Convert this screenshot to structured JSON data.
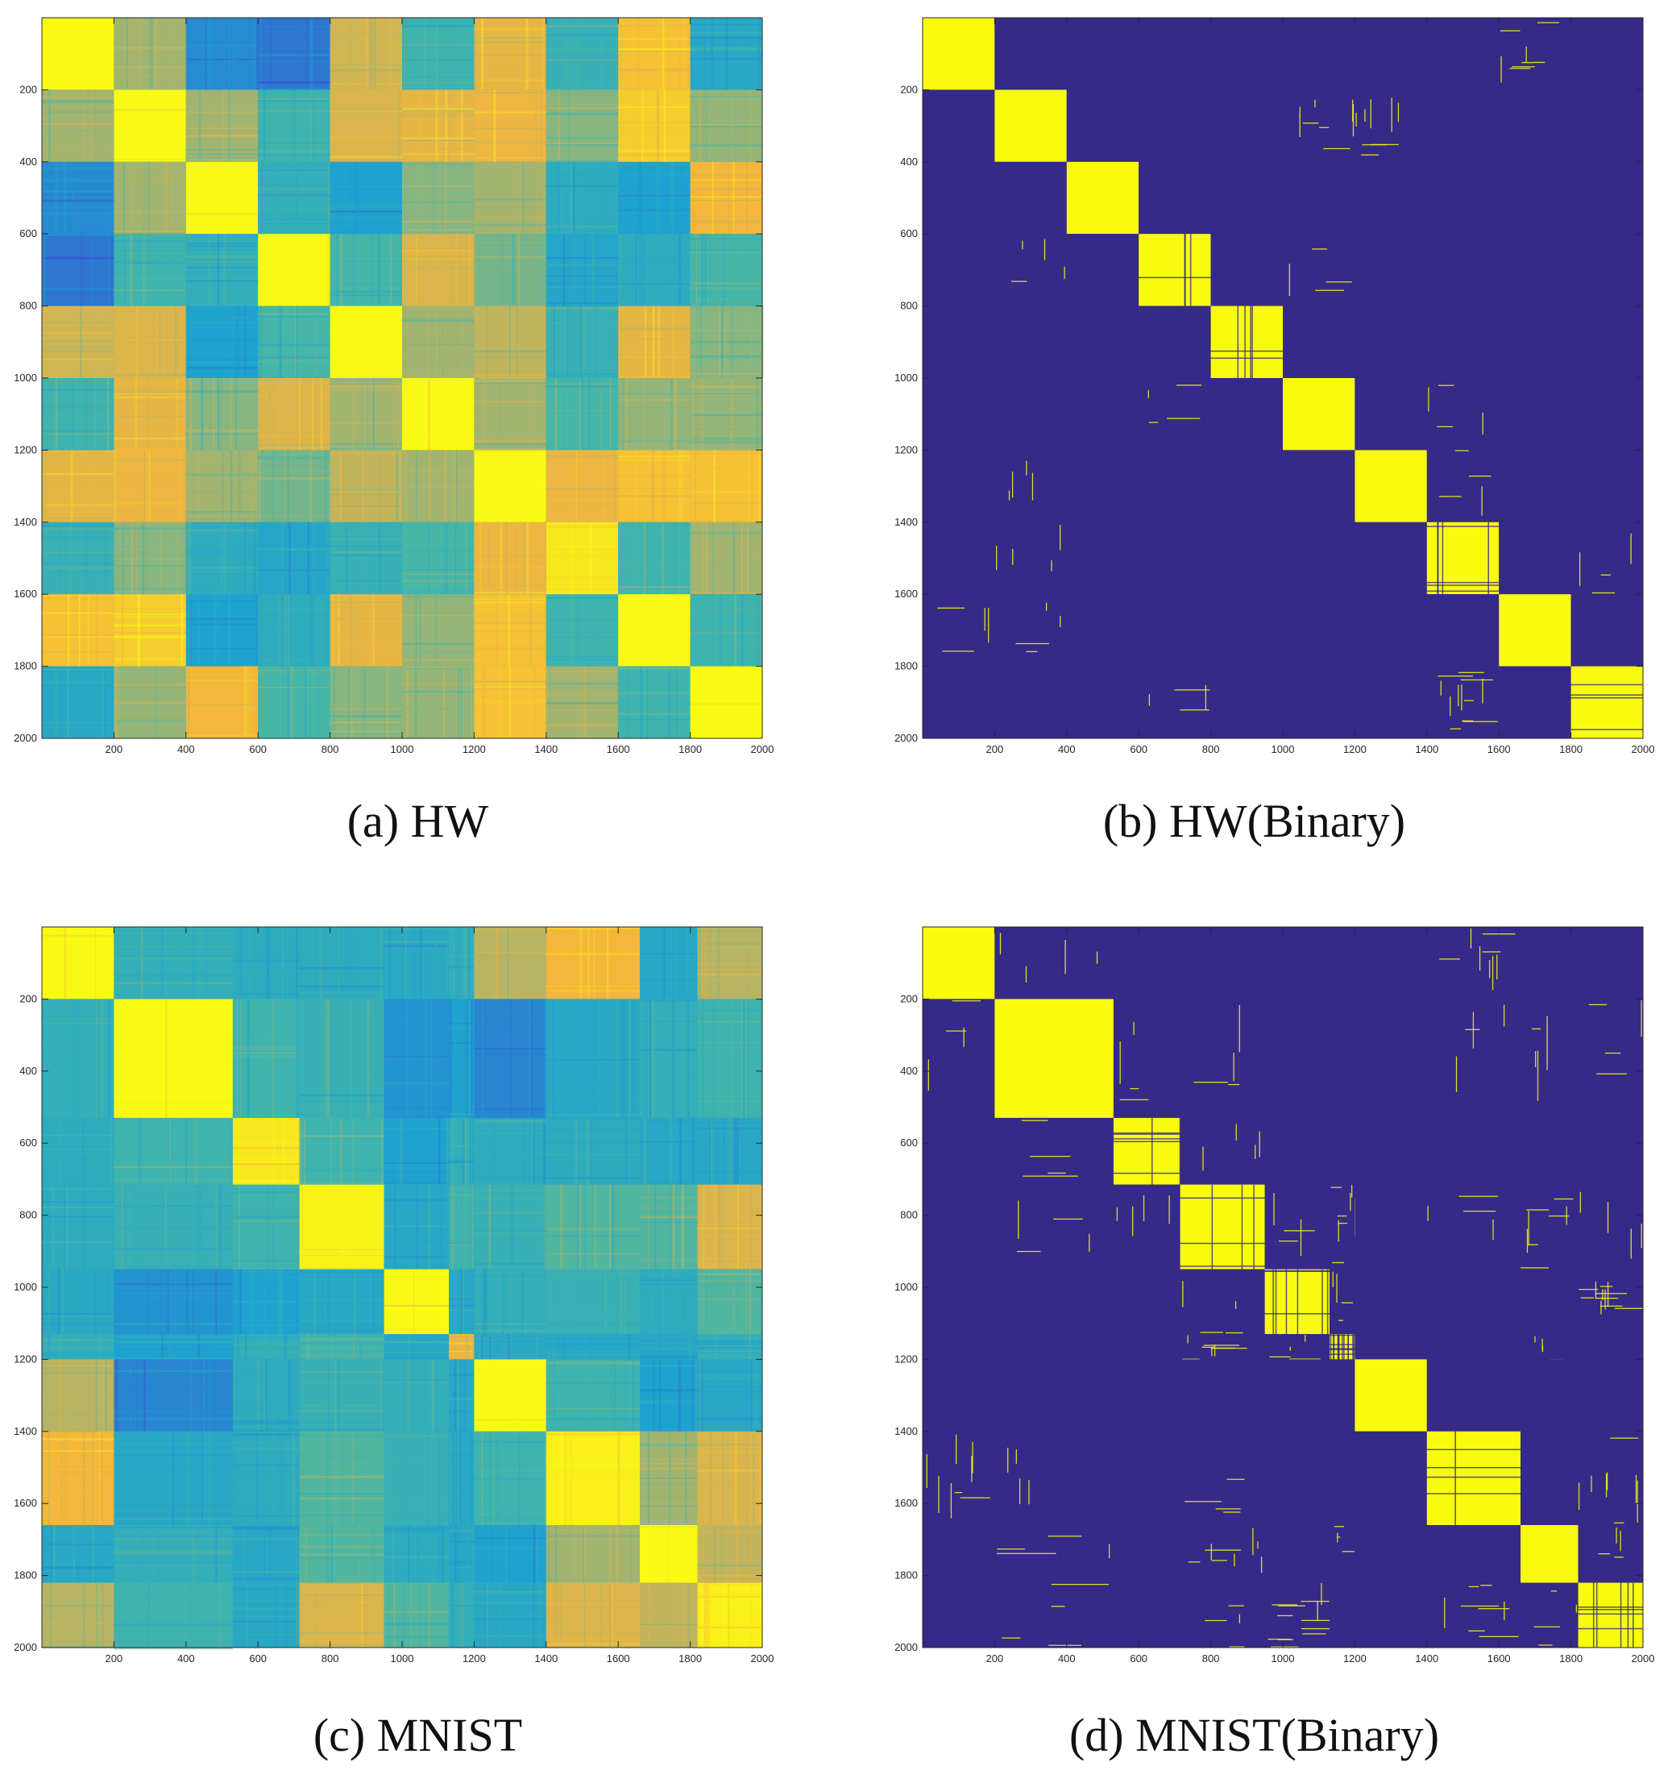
{
  "colors": {
    "parula_low": "#3d49d0",
    "parula_mid": "#1ea3d0",
    "parula_teal": "#45b6a7",
    "parula_olive": "#b7b464",
    "parula_orange": "#f4b63b",
    "parula_high": "#f9fa14",
    "binary_off": "#352a87",
    "binary_on": "#f9fb0e",
    "axis": "#262626"
  },
  "chart_data": [
    {
      "id": "a",
      "type": "heatmap",
      "caption_label": "(a)",
      "caption_name": "HW",
      "colormap": "parula",
      "n": 2000,
      "xlim": [
        0,
        2000
      ],
      "ylim": [
        0,
        2000
      ],
      "x_ticks": [
        "200",
        "400",
        "600",
        "800",
        "1000",
        "1200",
        "1400",
        "1600",
        "1800",
        "2000"
      ],
      "y_ticks": [
        "200",
        "400",
        "600",
        "800",
        "1000",
        "1200",
        "1400",
        "1600",
        "1800",
        "2000"
      ],
      "cluster_bounds": [
        0,
        200,
        400,
        600,
        800,
        1000,
        1200,
        1400,
        1600,
        1800,
        2000
      ],
      "block_values": [
        [
          1.0,
          0.62,
          0.22,
          0.15,
          0.72,
          0.45,
          0.78,
          0.42,
          0.85,
          0.35
        ],
        [
          0.62,
          1.0,
          0.62,
          0.45,
          0.75,
          0.78,
          0.8,
          0.58,
          0.88,
          0.6
        ],
        [
          0.22,
          0.62,
          1.0,
          0.4,
          0.3,
          0.58,
          0.62,
          0.38,
          0.3,
          0.82
        ],
        [
          0.15,
          0.45,
          0.4,
          1.0,
          0.48,
          0.75,
          0.55,
          0.33,
          0.38,
          0.48
        ],
        [
          0.72,
          0.75,
          0.3,
          0.48,
          1.0,
          0.62,
          0.68,
          0.42,
          0.78,
          0.58
        ],
        [
          0.45,
          0.78,
          0.58,
          0.75,
          0.62,
          1.0,
          0.62,
          0.48,
          0.6,
          0.6
        ],
        [
          0.78,
          0.8,
          0.62,
          0.55,
          0.68,
          0.62,
          1.0,
          0.8,
          0.85,
          0.85
        ],
        [
          0.42,
          0.58,
          0.38,
          0.33,
          0.42,
          0.48,
          0.8,
          0.95,
          0.45,
          0.62
        ],
        [
          0.85,
          0.88,
          0.3,
          0.38,
          0.78,
          0.6,
          0.85,
          0.45,
          1.0,
          0.45
        ],
        [
          0.35,
          0.6,
          0.82,
          0.48,
          0.58,
          0.6,
          0.85,
          0.62,
          0.45,
          1.0
        ]
      ]
    },
    {
      "id": "b",
      "type": "heatmap",
      "caption_label": "(b)",
      "caption_name": "HW(Binary)",
      "colormap": "binary",
      "n": 2000,
      "xlim": [
        0,
        2000
      ],
      "ylim": [
        0,
        2000
      ],
      "x_ticks": [
        "200",
        "400",
        "600",
        "800",
        "1000",
        "1200",
        "1400",
        "1600",
        "1800",
        "2000"
      ],
      "y_ticks": [
        "200",
        "400",
        "600",
        "800",
        "1000",
        "1200",
        "1400",
        "1600",
        "1800",
        "2000"
      ],
      "cluster_bounds": [
        0,
        200,
        400,
        600,
        800,
        1000,
        1200,
        1400,
        1600,
        1800,
        2000
      ],
      "block_values": [
        [
          1,
          0,
          0,
          0,
          0,
          0,
          0,
          0,
          0.02,
          0
        ],
        [
          0,
          0.97,
          0,
          0,
          0,
          0.02,
          0.02,
          0,
          0,
          0
        ],
        [
          0,
          0,
          1,
          0,
          0,
          0,
          0,
          0,
          0,
          0
        ],
        [
          0,
          0.01,
          0,
          0.93,
          0,
          0.01,
          0,
          0,
          0,
          0
        ],
        [
          0,
          0,
          0,
          0,
          0.9,
          0,
          0,
          0,
          0,
          0
        ],
        [
          0,
          0,
          0,
          0.01,
          0,
          0.97,
          0,
          0.01,
          0,
          0
        ],
        [
          0,
          0.01,
          0,
          0,
          0,
          0,
          0.98,
          0.01,
          0,
          0
        ],
        [
          0,
          0.01,
          0,
          0,
          0,
          0,
          0,
          0.85,
          0,
          0.01
        ],
        [
          0.01,
          0.01,
          0,
          0,
          0,
          0,
          0,
          0,
          0.98,
          0
        ],
        [
          0,
          0,
          0,
          0.01,
          0,
          0,
          0,
          0.03,
          0,
          0.94
        ]
      ]
    },
    {
      "id": "c",
      "type": "heatmap",
      "caption_label": "(c)",
      "caption_name": "MNIST",
      "colormap": "parula",
      "n": 2000,
      "xlim": [
        0,
        2000
      ],
      "ylim": [
        0,
        2000
      ],
      "x_ticks": [
        "200",
        "400",
        "600",
        "800",
        "1000",
        "1200",
        "1400",
        "1600",
        "1800",
        "2000"
      ],
      "y_ticks": [
        "200",
        "400",
        "600",
        "800",
        "1000",
        "1200",
        "1400",
        "1600",
        "1800",
        "2000"
      ],
      "cluster_bounds": [
        0,
        200,
        530,
        715,
        950,
        1130,
        1200,
        1400,
        1660,
        1820,
        2000
      ],
      "block_values": [
        [
          1.0,
          0.4,
          0.38,
          0.38,
          0.36,
          0.4,
          0.65,
          0.82,
          0.35,
          0.65
        ],
        [
          0.4,
          1.0,
          0.45,
          0.42,
          0.25,
          0.3,
          0.2,
          0.35,
          0.4,
          0.45
        ],
        [
          0.38,
          0.45,
          0.95,
          0.45,
          0.3,
          0.4,
          0.38,
          0.38,
          0.35,
          0.35
        ],
        [
          0.38,
          0.42,
          0.45,
          0.98,
          0.35,
          0.45,
          0.42,
          0.5,
          0.5,
          0.75
        ],
        [
          0.36,
          0.25,
          0.3,
          0.35,
          1.0,
          0.35,
          0.4,
          0.42,
          0.38,
          0.5
        ],
        [
          0.4,
          0.3,
          0.4,
          0.45,
          0.35,
          0.8,
          0.35,
          0.35,
          0.35,
          0.4
        ],
        [
          0.65,
          0.2,
          0.38,
          0.42,
          0.4,
          0.35,
          1.0,
          0.45,
          0.3,
          0.35
        ],
        [
          0.82,
          0.35,
          0.38,
          0.5,
          0.42,
          0.35,
          0.45,
          0.97,
          0.62,
          0.75
        ],
        [
          0.35,
          0.4,
          0.35,
          0.5,
          0.38,
          0.35,
          0.3,
          0.62,
          1.0,
          0.68
        ],
        [
          0.65,
          0.45,
          0.35,
          0.75,
          0.5,
          0.4,
          0.35,
          0.75,
          0.68,
          0.97
        ]
      ]
    },
    {
      "id": "d",
      "type": "heatmap",
      "caption_label": "(d)",
      "caption_name": "MNIST(Binary)",
      "colormap": "binary",
      "n": 2000,
      "xlim": [
        0,
        2000
      ],
      "ylim": [
        0,
        2000
      ],
      "x_ticks": [
        "200",
        "400",
        "600",
        "800",
        "1000",
        "1200",
        "1400",
        "1600",
        "1800",
        "2000"
      ],
      "y_ticks": [
        "200",
        "400",
        "600",
        "800",
        "1000",
        "1200",
        "1400",
        "1600",
        "1800",
        "2000"
      ],
      "cluster_bounds": [
        0,
        200,
        530,
        715,
        950,
        1130,
        1200,
        1400,
        1660,
        1820,
        2000
      ],
      "block_values": [
        [
          1,
          0.01,
          0,
          0,
          0,
          0,
          0,
          0.02,
          0,
          0
        ],
        [
          0.01,
          0.97,
          0.01,
          0.01,
          0,
          0,
          0,
          0.01,
          0.01,
          0.01
        ],
        [
          0,
          0.01,
          0.88,
          0.01,
          0,
          0,
          0,
          0,
          0,
          0
        ],
        [
          0,
          0.01,
          0.01,
          0.9,
          0.01,
          0.02,
          0,
          0.01,
          0.02,
          0.01
        ],
        [
          0,
          0,
          0,
          0.01,
          0.85,
          0.01,
          0,
          0,
          0,
          0.03
        ],
        [
          0,
          0,
          0,
          0.02,
          0.01,
          0.7,
          0,
          0,
          0.01,
          0
        ],
        [
          0,
          0,
          0,
          0,
          0,
          0,
          0.98,
          0,
          0,
          0
        ],
        [
          0.02,
          0.01,
          0,
          0.01,
          0,
          0,
          0,
          0.92,
          0,
          0.02
        ],
        [
          0,
          0.01,
          0,
          0.02,
          0,
          0.01,
          0,
          0,
          0.97,
          0.01
        ],
        [
          0,
          0.01,
          0,
          0.01,
          0.03,
          0,
          0,
          0.02,
          0.01,
          0.85
        ]
      ]
    }
  ]
}
